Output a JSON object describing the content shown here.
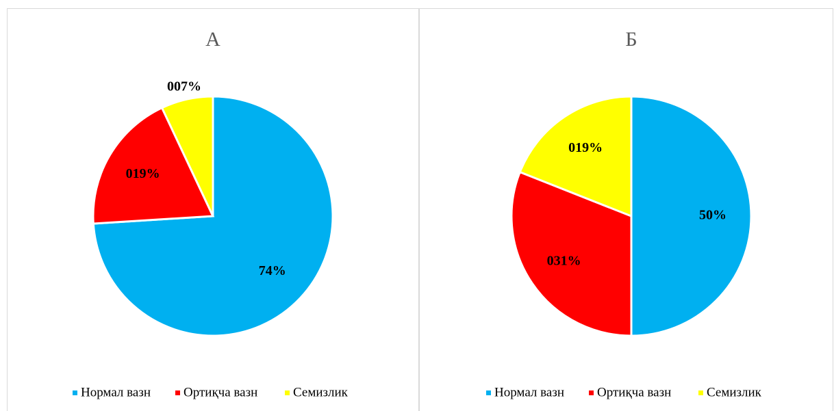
{
  "chart_data": [
    {
      "type": "pie",
      "title": "А",
      "categories": [
        "Нормал вазн",
        "Ортиқча вазн",
        "Семизлик"
      ],
      "values": [
        74,
        19,
        7
      ],
      "value_labels": [
        "74%",
        "019%",
        "007%"
      ],
      "colors": [
        "#00b0f0",
        "#ff0000",
        "#ffff00"
      ]
    },
    {
      "type": "pie",
      "title": "Б",
      "categories": [
        "Нормал вазн",
        "Ортиқча вазн",
        "Семизлик"
      ],
      "values": [
        50,
        31,
        19
      ],
      "value_labels": [
        "50%",
        "031%",
        "019%"
      ],
      "colors": [
        "#00b0f0",
        "#ff0000",
        "#ffff00"
      ]
    }
  ]
}
